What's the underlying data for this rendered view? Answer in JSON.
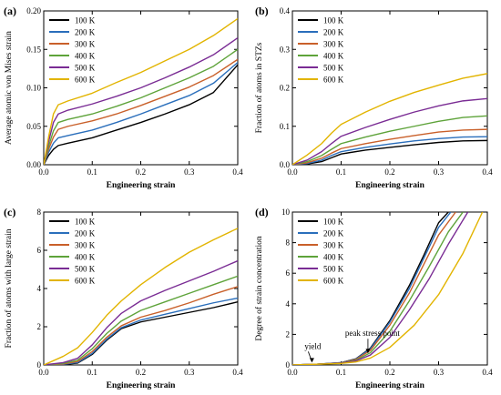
{
  "colors": {
    "100 K": "#000000",
    "200 K": "#2a6ebb",
    "300 K": "#c9602a",
    "400 K": "#5ea33a",
    "500 K": "#7a2c94",
    "600 K": "#e2b400"
  },
  "chart_data": [
    {
      "panel": "(a)",
      "type": "line",
      "xlabel": "Engineering strain",
      "ylabel": "Average atomic von Mises strain",
      "xlim": [
        0,
        0.4
      ],
      "ylim": [
        0,
        0.2
      ],
      "xticks": [
        "0.0",
        "0.1",
        "0.2",
        "0.3",
        "0.4"
      ],
      "yticks": [
        "0.00",
        "0.05",
        "0.10",
        "0.15",
        "0.20"
      ],
      "legend_position": "top-left",
      "series": [
        {
          "name": "100 K",
          "x": [
            0,
            0.01,
            0.02,
            0.03,
            0.05,
            0.1,
            0.15,
            0.2,
            0.25,
            0.3,
            0.35,
            0.4
          ],
          "y": [
            0,
            0.012,
            0.02,
            0.025,
            0.028,
            0.035,
            0.045,
            0.055,
            0.066,
            0.078,
            0.094,
            0.13
          ]
        },
        {
          "name": "200 K",
          "x": [
            0,
            0.01,
            0.02,
            0.03,
            0.05,
            0.1,
            0.15,
            0.2,
            0.25,
            0.3,
            0.35,
            0.4
          ],
          "y": [
            0,
            0.016,
            0.028,
            0.035,
            0.038,
            0.045,
            0.055,
            0.066,
            0.078,
            0.09,
            0.106,
            0.133
          ]
        },
        {
          "name": "300 K",
          "x": [
            0,
            0.01,
            0.02,
            0.03,
            0.05,
            0.1,
            0.15,
            0.2,
            0.25,
            0.3,
            0.35,
            0.4
          ],
          "y": [
            0,
            0.02,
            0.036,
            0.046,
            0.05,
            0.057,
            0.066,
            0.077,
            0.089,
            0.101,
            0.116,
            0.137
          ]
        },
        {
          "name": "400 K",
          "x": [
            0,
            0.01,
            0.02,
            0.03,
            0.05,
            0.1,
            0.15,
            0.2,
            0.25,
            0.3,
            0.35,
            0.4
          ],
          "y": [
            0,
            0.024,
            0.044,
            0.055,
            0.059,
            0.066,
            0.076,
            0.087,
            0.1,
            0.113,
            0.128,
            0.15
          ]
        },
        {
          "name": "500 K",
          "x": [
            0,
            0.01,
            0.02,
            0.03,
            0.05,
            0.1,
            0.15,
            0.2,
            0.25,
            0.3,
            0.35,
            0.4
          ],
          "y": [
            0,
            0.03,
            0.055,
            0.066,
            0.071,
            0.079,
            0.089,
            0.1,
            0.113,
            0.127,
            0.143,
            0.165
          ]
        },
        {
          "name": "600 K",
          "x": [
            0,
            0.01,
            0.02,
            0.03,
            0.05,
            0.1,
            0.15,
            0.2,
            0.25,
            0.3,
            0.35,
            0.4
          ],
          "y": [
            0,
            0.036,
            0.066,
            0.078,
            0.083,
            0.093,
            0.107,
            0.12,
            0.135,
            0.15,
            0.168,
            0.19
          ]
        }
      ]
    },
    {
      "panel": "(b)",
      "type": "line",
      "xlabel": "Engineering strain",
      "ylabel": "Fraction of atoms in STZs",
      "xlim": [
        0,
        0.4
      ],
      "ylim": [
        0,
        0.4
      ],
      "xticks": [
        "0.0",
        "0.1",
        "0.2",
        "0.3",
        "0.4"
      ],
      "yticks": [
        "0.0",
        "0.1",
        "0.2",
        "0.3",
        "0.4"
      ],
      "legend_position": "top-left",
      "series": [
        {
          "name": "100 K",
          "x": [
            0,
            0.03,
            0.06,
            0.08,
            0.1,
            0.15,
            0.2,
            0.25,
            0.3,
            0.35,
            0.4
          ],
          "y": [
            0,
            0.002,
            0.008,
            0.018,
            0.028,
            0.038,
            0.045,
            0.052,
            0.058,
            0.062,
            0.063
          ]
        },
        {
          "name": "200 K",
          "x": [
            0,
            0.03,
            0.06,
            0.08,
            0.1,
            0.15,
            0.2,
            0.25,
            0.3,
            0.35,
            0.4
          ],
          "y": [
            0,
            0.003,
            0.012,
            0.024,
            0.034,
            0.045,
            0.054,
            0.062,
            0.068,
            0.072,
            0.073
          ]
        },
        {
          "name": "300 K",
          "x": [
            0,
            0.03,
            0.06,
            0.08,
            0.1,
            0.15,
            0.2,
            0.25,
            0.3,
            0.35,
            0.4
          ],
          "y": [
            0,
            0.005,
            0.017,
            0.03,
            0.042,
            0.055,
            0.066,
            0.076,
            0.085,
            0.09,
            0.092
          ]
        },
        {
          "name": "400 K",
          "x": [
            0,
            0.03,
            0.06,
            0.08,
            0.1,
            0.15,
            0.2,
            0.25,
            0.3,
            0.35,
            0.4
          ],
          "y": [
            0,
            0.008,
            0.024,
            0.04,
            0.055,
            0.072,
            0.087,
            0.1,
            0.113,
            0.123,
            0.127
          ]
        },
        {
          "name": "500 K",
          "x": [
            0,
            0.03,
            0.06,
            0.08,
            0.1,
            0.15,
            0.2,
            0.25,
            0.3,
            0.35,
            0.4
          ],
          "y": [
            0,
            0.012,
            0.034,
            0.055,
            0.074,
            0.097,
            0.118,
            0.137,
            0.153,
            0.166,
            0.172
          ]
        },
        {
          "name": "600 K",
          "x": [
            0,
            0.03,
            0.06,
            0.08,
            0.1,
            0.15,
            0.2,
            0.25,
            0.3,
            0.35,
            0.4
          ],
          "y": [
            0,
            0.025,
            0.055,
            0.082,
            0.105,
            0.137,
            0.165,
            0.188,
            0.207,
            0.225,
            0.237
          ]
        }
      ]
    },
    {
      "panel": "(c)",
      "type": "line",
      "xlabel": "Engineering strain",
      "ylabel": "Fraction of atoms with large strain",
      "xlim": [
        0,
        0.4
      ],
      "ylim": [
        0,
        8
      ],
      "xticks": [
        "0.0",
        "0.1",
        "0.2",
        "0.3",
        "0.4"
      ],
      "yticks": [
        "0",
        "2",
        "4",
        "6",
        "8"
      ],
      "legend_position": "top-left",
      "series": [
        {
          "name": "100 K",
          "x": [
            0,
            0.04,
            0.07,
            0.1,
            0.13,
            0.16,
            0.2,
            0.25,
            0.3,
            0.35,
            0.4
          ],
          "y": [
            0,
            0.02,
            0.1,
            0.55,
            1.3,
            1.9,
            2.25,
            2.5,
            2.75,
            3.0,
            3.3
          ]
        },
        {
          "name": "200 K",
          "x": [
            0,
            0.04,
            0.07,
            0.1,
            0.13,
            0.16,
            0.2,
            0.25,
            0.3,
            0.35,
            0.4
          ],
          "y": [
            0,
            0.03,
            0.13,
            0.6,
            1.35,
            1.95,
            2.35,
            2.65,
            2.95,
            3.25,
            3.5
          ]
        },
        {
          "name": "300 K",
          "x": [
            0,
            0.04,
            0.07,
            0.1,
            0.13,
            0.16,
            0.2,
            0.25,
            0.3,
            0.35,
            0.4
          ],
          "y": [
            0,
            0.05,
            0.18,
            0.7,
            1.45,
            2.05,
            2.5,
            2.85,
            3.25,
            3.7,
            4.1
          ]
        },
        {
          "name": "400 K",
          "x": [
            0,
            0.04,
            0.07,
            0.1,
            0.13,
            0.16,
            0.2,
            0.25,
            0.3,
            0.35,
            0.4
          ],
          "y": [
            0,
            0.08,
            0.25,
            0.85,
            1.65,
            2.3,
            2.85,
            3.3,
            3.75,
            4.2,
            4.65
          ]
        },
        {
          "name": "500 K",
          "x": [
            0,
            0.04,
            0.07,
            0.1,
            0.13,
            0.16,
            0.2,
            0.25,
            0.3,
            0.35,
            0.4
          ],
          "y": [
            0,
            0.12,
            0.35,
            1.05,
            1.95,
            2.7,
            3.35,
            3.9,
            4.4,
            4.9,
            5.45
          ]
        },
        {
          "name": "600 K",
          "x": [
            0,
            0.04,
            0.07,
            0.1,
            0.13,
            0.16,
            0.2,
            0.25,
            0.3,
            0.35,
            0.4
          ],
          "y": [
            0,
            0.45,
            0.9,
            1.7,
            2.6,
            3.35,
            4.2,
            5.1,
            5.9,
            6.55,
            7.15
          ]
        }
      ]
    },
    {
      "panel": "(d)",
      "type": "line",
      "xlabel": "Engineering strain",
      "ylabel": "Degree of strain concentration",
      "xlim": [
        0,
        0.4
      ],
      "ylim": [
        0,
        10
      ],
      "xticks": [
        "0.0",
        "0.1",
        "0.2",
        "0.3",
        "0.4"
      ],
      "yticks": [
        "0",
        "2",
        "4",
        "6",
        "8",
        "10"
      ],
      "legend_position": "top-left",
      "annotations": [
        {
          "text": "yield",
          "x": 0.04,
          "y": 0.1
        },
        {
          "text": "peak stress point",
          "x": 0.155,
          "y": 0.7
        }
      ],
      "series": [
        {
          "name": "100 K",
          "x": [
            0,
            0.05,
            0.1,
            0.13,
            0.16,
            0.2,
            0.24,
            0.27,
            0.3,
            0.32
          ],
          "y": [
            0,
            0.05,
            0.15,
            0.4,
            1.1,
            2.9,
            5.2,
            7.2,
            9.3,
            10
          ]
        },
        {
          "name": "200 K",
          "x": [
            0,
            0.05,
            0.1,
            0.13,
            0.16,
            0.2,
            0.24,
            0.27,
            0.3,
            0.325
          ],
          "y": [
            0,
            0.05,
            0.15,
            0.38,
            1.05,
            2.8,
            5.0,
            7.0,
            9.0,
            10
          ]
        },
        {
          "name": "300 K",
          "x": [
            0,
            0.05,
            0.1,
            0.13,
            0.16,
            0.2,
            0.24,
            0.27,
            0.3,
            0.335
          ],
          "y": [
            0,
            0.05,
            0.14,
            0.35,
            0.95,
            2.6,
            4.7,
            6.6,
            8.5,
            10
          ]
        },
        {
          "name": "400 K",
          "x": [
            0,
            0.05,
            0.1,
            0.13,
            0.16,
            0.2,
            0.24,
            0.28,
            0.32,
            0.35
          ],
          "y": [
            0,
            0.05,
            0.13,
            0.3,
            0.8,
            2.2,
            4.2,
            6.4,
            8.7,
            10
          ]
        },
        {
          "name": "500 K",
          "x": [
            0,
            0.05,
            0.1,
            0.13,
            0.16,
            0.2,
            0.24,
            0.28,
            0.32,
            0.36
          ],
          "y": [
            0,
            0.05,
            0.12,
            0.26,
            0.65,
            1.8,
            3.6,
            5.6,
            7.9,
            10
          ]
        },
        {
          "name": "600 K",
          "x": [
            0,
            0.05,
            0.1,
            0.13,
            0.16,
            0.2,
            0.25,
            0.3,
            0.35,
            0.39
          ],
          "y": [
            0,
            0.05,
            0.1,
            0.2,
            0.45,
            1.15,
            2.6,
            4.6,
            7.3,
            10
          ]
        }
      ]
    }
  ]
}
